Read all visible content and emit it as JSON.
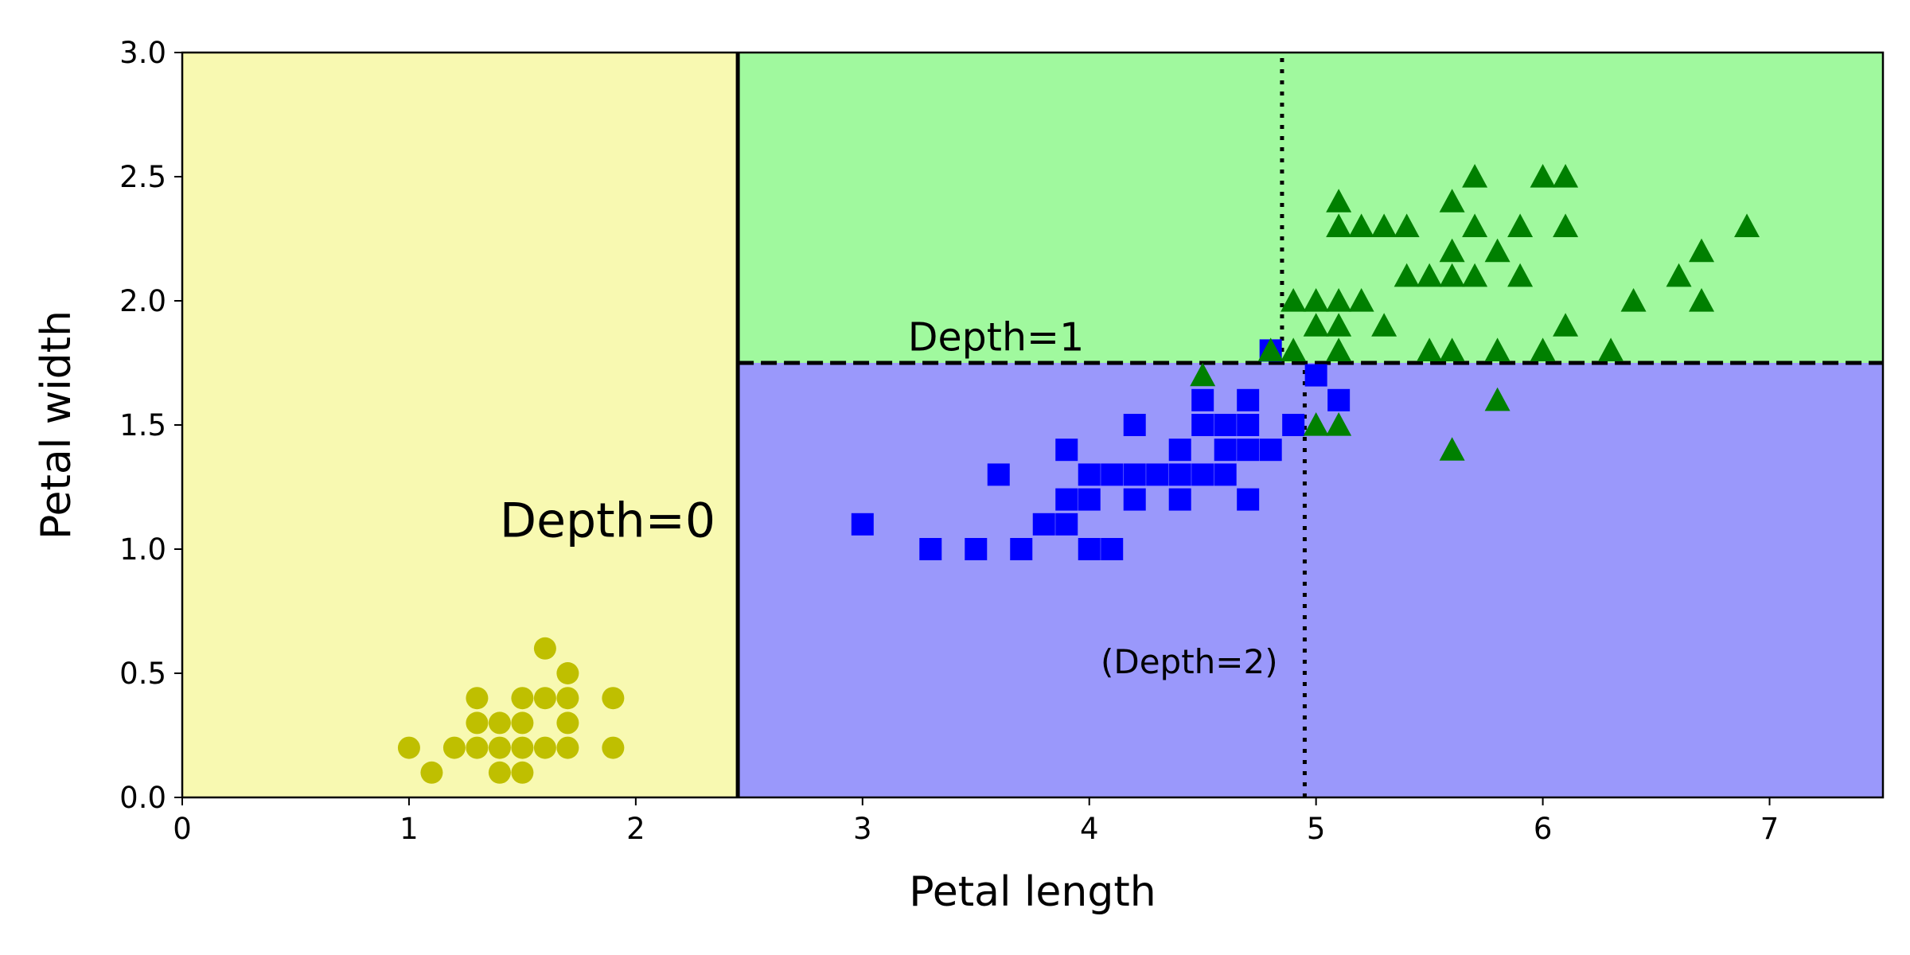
{
  "chart_data": {
    "type": "scatter",
    "title": "",
    "xlabel": "Petal length",
    "ylabel": "Petal width",
    "xlim": [
      0,
      7.5
    ],
    "ylim": [
      0,
      3.0
    ],
    "x_ticks": [
      "0",
      "1",
      "2",
      "3",
      "4",
      "5",
      "6",
      "7"
    ],
    "y_ticks": [
      "0.0",
      "0.5",
      "1.0",
      "1.5",
      "2.0",
      "2.5",
      "3.0"
    ],
    "grid": false,
    "legend": "none",
    "regions": [
      {
        "name": "setosa-region",
        "x_range": [
          0,
          2.45
        ],
        "y_range": [
          0,
          3.0
        ],
        "color": "#f8f9b1"
      },
      {
        "name": "virginica-region",
        "x_range": [
          2.45,
          7.5
        ],
        "y_range": [
          1.75,
          3.0
        ],
        "color": "#a0f99e"
      },
      {
        "name": "versicolor-region",
        "x_range": [
          2.45,
          7.5
        ],
        "y_range": [
          0,
          1.75
        ],
        "color": "#9a98fb"
      }
    ],
    "decision_boundaries": [
      {
        "name": "depth-0-boundary",
        "style": "solid",
        "x": [
          2.45,
          2.45
        ],
        "y": [
          0,
          3.0
        ]
      },
      {
        "name": "depth-1-boundary",
        "style": "dashed",
        "x": [
          2.45,
          7.5
        ],
        "y": [
          1.75,
          1.75
        ]
      },
      {
        "name": "depth-2-boundary-upper",
        "style": "dotted",
        "x": [
          4.85,
          4.85
        ],
        "y": [
          1.75,
          3.0
        ]
      },
      {
        "name": "depth-2-boundary-lower",
        "style": "dotted",
        "x": [
          4.95,
          4.95
        ],
        "y": [
          0,
          1.75
        ]
      }
    ],
    "annotations": [
      {
        "text": "Depth=0",
        "x": 1.4,
        "y": 1.05,
        "size": "large"
      },
      {
        "text": "Depth=1",
        "x": 3.2,
        "y": 1.8,
        "size": "medium"
      },
      {
        "text": "(Depth=2)",
        "x": 4.05,
        "y": 0.5,
        "size": "small"
      }
    ],
    "series": [
      {
        "marker": "circle",
        "color": "#bfbf00",
        "points": [
          [
            1.0,
            0.2
          ],
          [
            1.1,
            0.1
          ],
          [
            1.2,
            0.2
          ],
          [
            1.3,
            0.2
          ],
          [
            1.3,
            0.3
          ],
          [
            1.3,
            0.4
          ],
          [
            1.4,
            0.1
          ],
          [
            1.4,
            0.2
          ],
          [
            1.4,
            0.3
          ],
          [
            1.5,
            0.1
          ],
          [
            1.5,
            0.2
          ],
          [
            1.5,
            0.3
          ],
          [
            1.5,
            0.4
          ],
          [
            1.6,
            0.2
          ],
          [
            1.6,
            0.4
          ],
          [
            1.6,
            0.6
          ],
          [
            1.7,
            0.2
          ],
          [
            1.7,
            0.3
          ],
          [
            1.7,
            0.4
          ],
          [
            1.7,
            0.5
          ],
          [
            1.9,
            0.2
          ],
          [
            1.9,
            0.4
          ]
        ]
      },
      {
        "marker": "square",
        "color": "#0000ff",
        "points": [
          [
            3.0,
            1.1
          ],
          [
            3.3,
            1.0
          ],
          [
            3.5,
            1.0
          ],
          [
            3.6,
            1.3
          ],
          [
            3.7,
            1.0
          ],
          [
            3.8,
            1.1
          ],
          [
            3.9,
            1.1
          ],
          [
            3.9,
            1.2
          ],
          [
            3.9,
            1.4
          ],
          [
            4.0,
            1.0
          ],
          [
            4.0,
            1.2
          ],
          [
            4.0,
            1.3
          ],
          [
            4.1,
            1.0
          ],
          [
            4.1,
            1.3
          ],
          [
            4.2,
            1.2
          ],
          [
            4.2,
            1.3
          ],
          [
            4.2,
            1.5
          ],
          [
            4.3,
            1.3
          ],
          [
            4.4,
            1.2
          ],
          [
            4.4,
            1.3
          ],
          [
            4.4,
            1.4
          ],
          [
            4.5,
            1.3
          ],
          [
            4.5,
            1.5
          ],
          [
            4.5,
            1.6
          ],
          [
            4.6,
            1.3
          ],
          [
            4.6,
            1.4
          ],
          [
            4.6,
            1.5
          ],
          [
            4.7,
            1.2
          ],
          [
            4.7,
            1.4
          ],
          [
            4.7,
            1.5
          ],
          [
            4.7,
            1.6
          ],
          [
            4.8,
            1.4
          ],
          [
            4.8,
            1.8
          ],
          [
            4.9,
            1.5
          ],
          [
            5.0,
            1.7
          ],
          [
            5.1,
            1.6
          ]
        ]
      },
      {
        "marker": "triangle",
        "color": "#008000",
        "points": [
          [
            4.5,
            1.7
          ],
          [
            4.8,
            1.8
          ],
          [
            4.9,
            1.8
          ],
          [
            4.9,
            2.0
          ],
          [
            5.0,
            1.5
          ],
          [
            5.0,
            1.9
          ],
          [
            5.0,
            2.0
          ],
          [
            5.1,
            1.5
          ],
          [
            5.1,
            1.8
          ],
          [
            5.1,
            1.9
          ],
          [
            5.1,
            2.0
          ],
          [
            5.1,
            2.3
          ],
          [
            5.1,
            2.4
          ],
          [
            5.2,
            2.0
          ],
          [
            5.2,
            2.3
          ],
          [
            5.3,
            1.9
          ],
          [
            5.3,
            2.3
          ],
          [
            5.4,
            2.1
          ],
          [
            5.4,
            2.3
          ],
          [
            5.5,
            1.8
          ],
          [
            5.5,
            2.1
          ],
          [
            5.6,
            1.4
          ],
          [
            5.6,
            1.8
          ],
          [
            5.6,
            2.1
          ],
          [
            5.6,
            2.2
          ],
          [
            5.6,
            2.4
          ],
          [
            5.7,
            2.1
          ],
          [
            5.7,
            2.3
          ],
          [
            5.7,
            2.5
          ],
          [
            5.8,
            1.6
          ],
          [
            5.8,
            1.8
          ],
          [
            5.8,
            2.2
          ],
          [
            5.9,
            2.1
          ],
          [
            5.9,
            2.3
          ],
          [
            6.0,
            1.8
          ],
          [
            6.0,
            2.5
          ],
          [
            6.1,
            1.9
          ],
          [
            6.1,
            2.3
          ],
          [
            6.1,
            2.5
          ],
          [
            6.3,
            1.8
          ],
          [
            6.4,
            2.0
          ],
          [
            6.6,
            2.1
          ],
          [
            6.7,
            2.0
          ],
          [
            6.7,
            2.2
          ],
          [
            6.9,
            2.3
          ]
        ]
      }
    ]
  }
}
